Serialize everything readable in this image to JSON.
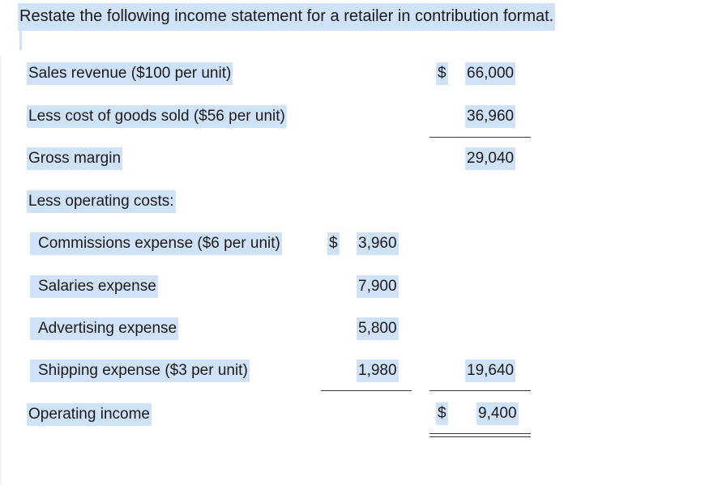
{
  "title": "Restate the following income statement for a retailer in contribution format.",
  "rows": {
    "sales": {
      "label": "Sales revenue ($100 per unit)",
      "dollar": "$",
      "amount": "66,000"
    },
    "cogs": {
      "label": "Less cost of goods sold ($56 per unit)",
      "amount": "36,960"
    },
    "gross": {
      "label": "Gross margin",
      "amount": "29,040"
    },
    "opcosts": {
      "label": "Less operating costs:"
    },
    "commissions": {
      "label": "Commissions expense ($6 per unit)",
      "dollar": "$",
      "amount": "3,960"
    },
    "salaries": {
      "label": "Salaries expense",
      "amount": "7,900"
    },
    "advertising": {
      "label": "Advertising expense",
      "amount": "5,800"
    },
    "shipping": {
      "label": "Shipping expense ($3 per unit)",
      "amount": "1,980",
      "total": "19,640"
    },
    "operating": {
      "label": "Operating income",
      "dollar": "$",
      "amount": "9,400"
    }
  }
}
